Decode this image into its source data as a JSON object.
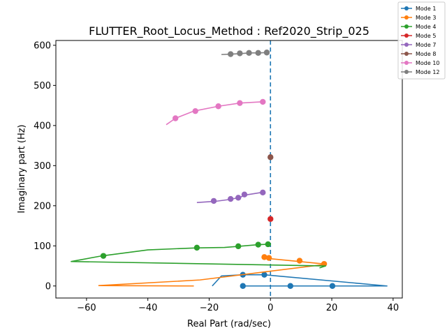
{
  "chart_data": {
    "type": "line",
    "title": "FLUTTER_Root_Locus_Method : Ref2020_Strip_025",
    "xlabel": "Real Part (rad/sec)",
    "ylabel": "Imaginary part (Hz)",
    "xlim": [
      -70,
      43
    ],
    "ylim": [
      -30,
      612
    ],
    "xticks": [
      -60,
      -40,
      -20,
      0,
      20,
      40
    ],
    "yticks": [
      0,
      100,
      200,
      300,
      400,
      500,
      600
    ],
    "grid": false,
    "legend_placement": "top-right outside",
    "reference_line": {
      "x": 0,
      "style": "dashed",
      "color": "#1f77b4"
    },
    "series": [
      {
        "name": "Mode 1",
        "color": "#1f77b4",
        "line": [
          [
            -19,
            0
          ],
          [
            -16,
            25
          ],
          [
            -9,
            28
          ],
          [
            -2,
            28
          ],
          [
            38,
            0
          ],
          [
            -9,
            0
          ]
        ],
        "markers": [
          [
            -9,
            28
          ],
          [
            -2,
            28
          ],
          [
            -9,
            0
          ],
          [
            6.5,
            0
          ],
          [
            20.2,
            0
          ]
        ]
      },
      {
        "name": "Mode 3",
        "color": "#ff7f0e",
        "line": [
          [
            -25,
            0
          ],
          [
            -56,
            1
          ],
          [
            -23,
            15
          ],
          [
            17,
            53
          ],
          [
            17.5,
            55
          ],
          [
            0,
            68
          ],
          [
            -2,
            72
          ],
          [
            -1,
            70
          ]
        ],
        "markers": [
          [
            -2,
            72
          ],
          [
            -0.5,
            70
          ],
          [
            9.5,
            63
          ],
          [
            17.5,
            55
          ]
        ]
      },
      {
        "name": "Mode 4",
        "color": "#2ca02c",
        "line": [
          [
            16,
            45
          ],
          [
            18,
            50
          ],
          [
            -65,
            61
          ],
          [
            -55,
            75
          ],
          [
            -40,
            90
          ],
          [
            -24,
            95
          ],
          [
            -15,
            96
          ],
          [
            -10,
            99
          ],
          [
            -4,
            103
          ],
          [
            -1,
            104
          ]
        ],
        "markers": [
          [
            -54.5,
            75
          ],
          [
            -24,
            95.5
          ],
          [
            -10.5,
            99
          ],
          [
            -4,
            103
          ],
          [
            -0.8,
            104
          ]
        ]
      },
      {
        "name": "Mode 5",
        "color": "#d62728",
        "line": [
          [
            0,
            167
          ],
          [
            0,
            167
          ]
        ],
        "markers": [
          [
            0,
            167
          ]
        ]
      },
      {
        "name": "Mode 7",
        "color": "#9467bd",
        "line": [
          [
            -24,
            208
          ],
          [
            -18,
            211
          ],
          [
            -13,
            216
          ],
          [
            -10,
            221
          ],
          [
            -8,
            227
          ],
          [
            -3,
            233
          ]
        ],
        "markers": [
          [
            -18.5,
            212
          ],
          [
            -13,
            217
          ],
          [
            -10.5,
            220
          ],
          [
            -8.5,
            228
          ],
          [
            -2.5,
            233
          ]
        ]
      },
      {
        "name": "Mode 8",
        "color": "#8c564b",
        "line": [
          [
            0,
            321
          ],
          [
            0,
            321
          ]
        ],
        "markers": [
          [
            0,
            321
          ]
        ]
      },
      {
        "name": "Mode 10",
        "color": "#e377c2",
        "line": [
          [
            -34,
            402
          ],
          [
            -31,
            418
          ],
          [
            -25,
            436
          ],
          [
            -17,
            448
          ],
          [
            -10,
            456
          ],
          [
            -3,
            459
          ]
        ],
        "markers": [
          [
            -31,
            418
          ],
          [
            -24.5,
            436
          ],
          [
            -17,
            448
          ],
          [
            -10,
            456
          ],
          [
            -2.5,
            459
          ]
        ]
      },
      {
        "name": "Mode 12",
        "color": "#7f7f7f",
        "line": [
          [
            -16,
            577
          ],
          [
            -13,
            578
          ],
          [
            -10,
            579
          ],
          [
            -7,
            581
          ],
          [
            -4,
            581
          ],
          [
            -1,
            582
          ]
        ],
        "markers": [
          [
            -13,
            578
          ],
          [
            -10,
            580
          ],
          [
            -7,
            581
          ],
          [
            -4,
            581
          ],
          [
            -1.2,
            582
          ]
        ]
      }
    ]
  }
}
